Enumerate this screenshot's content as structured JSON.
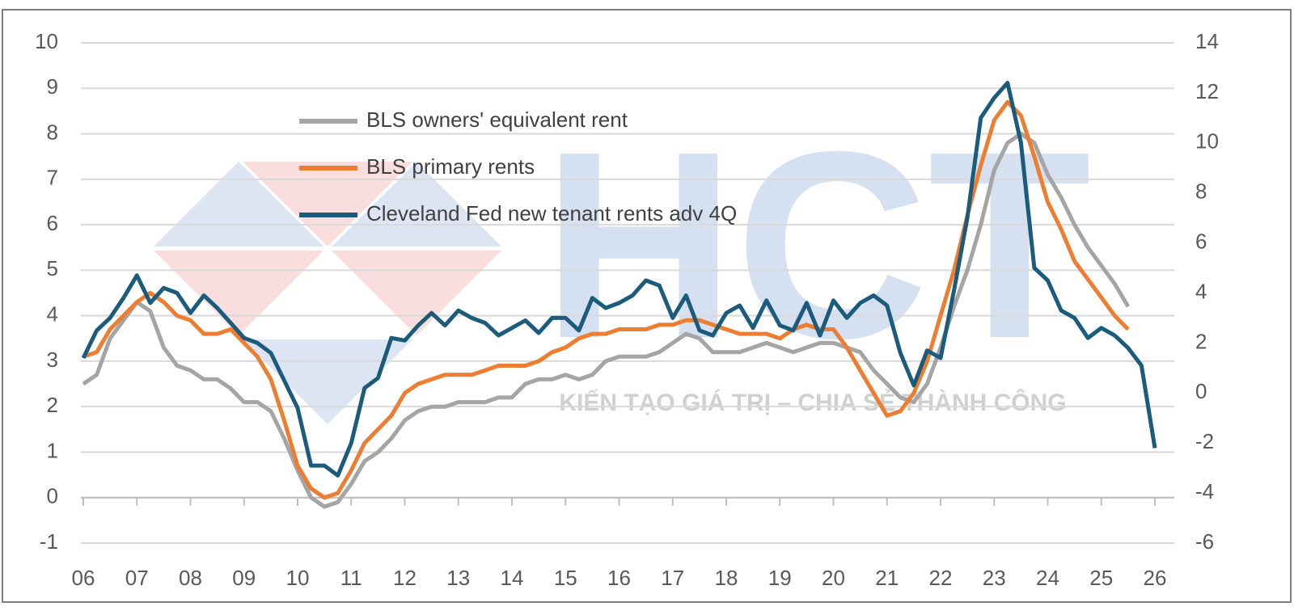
{
  "chart_data": {
    "type": "line",
    "watermark": "HCT",
    "watermark_slogan": "KIẾN TẠO GIÁ TRỊ – CHIA SẺ THÀNH CÔNG",
    "categories": [
      "06",
      null,
      null,
      null,
      "07",
      null,
      null,
      null,
      "08",
      null,
      null,
      null,
      "09",
      null,
      null,
      null,
      "10",
      null,
      null,
      null,
      "11",
      null,
      null,
      null,
      "12",
      null,
      null,
      null,
      "13",
      null,
      null,
      null,
      "14",
      null,
      null,
      null,
      "15",
      null,
      null,
      null,
      "16",
      null,
      null,
      null,
      "17",
      null,
      null,
      null,
      "18",
      null,
      null,
      null,
      "19",
      null,
      null,
      null,
      "20",
      null,
      null,
      null,
      "21",
      null,
      null,
      null,
      "22",
      null,
      null,
      null,
      "23",
      null,
      null,
      null,
      "24",
      null,
      null,
      null,
      "25",
      null,
      null,
      null,
      "26"
    ],
    "ylim": [
      -1,
      10
    ],
    "yticks": [
      -1,
      0,
      1,
      2,
      3,
      4,
      5,
      6,
      7,
      8,
      9,
      10
    ],
    "y2lim": [
      -6,
      14
    ],
    "y2ticks": [
      -6,
      -4,
      -2,
      0,
      2,
      4,
      6,
      8,
      10,
      12,
      14
    ],
    "grid": true,
    "legend": "upper-left",
    "series": [
      {
        "name": "BLS owners' equivalent rent",
        "color": "#a5a5a5",
        "values": [
          2.5,
          2.7,
          3.5,
          3.9,
          4.3,
          4.1,
          3.3,
          2.9,
          2.8,
          2.6,
          2.6,
          2.4,
          2.1,
          2.1,
          1.9,
          1.3,
          0.6,
          0,
          -0.2,
          -0.1,
          0.3,
          0.8,
          1.0,
          1.3,
          1.7,
          1.9,
          2.0,
          2.0,
          2.1,
          2.1,
          2.1,
          2.2,
          2.2,
          2.5,
          2.6,
          2.6,
          2.7,
          2.6,
          2.7,
          3.0,
          3.1,
          3.1,
          3.1,
          3.2,
          3.4,
          3.6,
          3.5,
          3.2,
          3.2,
          3.2,
          3.3,
          3.4,
          3.3,
          3.2,
          3.3,
          3.4,
          3.4,
          3.3,
          3.2,
          2.8,
          2.5,
          2.2,
          2.1,
          2.5,
          3.3,
          4.2,
          5.0,
          6.0,
          7.2,
          7.8,
          8.0,
          7.8,
          7.1,
          6.6,
          6.0,
          5.5,
          5.1,
          4.7,
          4.2,
          null,
          null
        ]
      },
      {
        "name": "BLS primary rents",
        "color": "#ed7d31",
        "values": [
          3.1,
          3.2,
          3.7,
          4.0,
          4.3,
          4.5,
          4.3,
          4.0,
          3.9,
          3.6,
          3.6,
          3.7,
          3.4,
          3.1,
          2.6,
          1.7,
          0.7,
          0.2,
          0.0,
          0.1,
          0.6,
          1.2,
          1.5,
          1.8,
          2.3,
          2.5,
          2.6,
          2.7,
          2.7,
          2.7,
          2.8,
          2.9,
          2.9,
          2.9,
          3.0,
          3.2,
          3.3,
          3.5,
          3.6,
          3.6,
          3.7,
          3.7,
          3.7,
          3.8,
          3.8,
          3.9,
          3.9,
          3.8,
          3.7,
          3.6,
          3.6,
          3.6,
          3.5,
          3.7,
          3.8,
          3.7,
          3.7,
          3.3,
          2.8,
          2.3,
          1.8,
          1.9,
          2.3,
          3.0,
          4.0,
          5.0,
          6.2,
          7.3,
          8.3,
          8.7,
          8.4,
          7.5,
          6.5,
          5.9,
          5.2,
          4.8,
          4.4,
          4.0,
          3.7,
          null,
          null
        ]
      },
      {
        "name": "Cleveland Fed new tenant rents adv 4Q",
        "color": "#1b5b7c",
        "axis": "y2",
        "values": [
          1.4,
          2.5,
          3.0,
          3.8,
          4.7,
          3.6,
          4.2,
          4.0,
          3.2,
          3.9,
          3.4,
          2.8,
          2.2,
          2.0,
          1.6,
          0.5,
          -0.6,
          -2.9,
          -2.9,
          -3.3,
          -2.0,
          0.2,
          0.6,
          2.2,
          2.1,
          2.7,
          3.2,
          2.7,
          3.3,
          3.0,
          2.8,
          2.3,
          2.6,
          2.9,
          2.4,
          3.0,
          3.0,
          2.5,
          3.8,
          3.4,
          3.6,
          3.9,
          4.5,
          4.3,
          3.0,
          3.9,
          2.5,
          2.3,
          3.2,
          3.5,
          2.6,
          3.7,
          2.7,
          2.5,
          3.6,
          2.3,
          3.7,
          3.0,
          3.6,
          3.9,
          3.5,
          1.6,
          0.3,
          1.7,
          1.4,
          4.1,
          7.0,
          11.0,
          11.8,
          12.4,
          10.0,
          5.0,
          4.5,
          3.3,
          3.0,
          2.2,
          2.6,
          2.3,
          1.8,
          1.1,
          -2.2
        ]
      }
    ]
  }
}
